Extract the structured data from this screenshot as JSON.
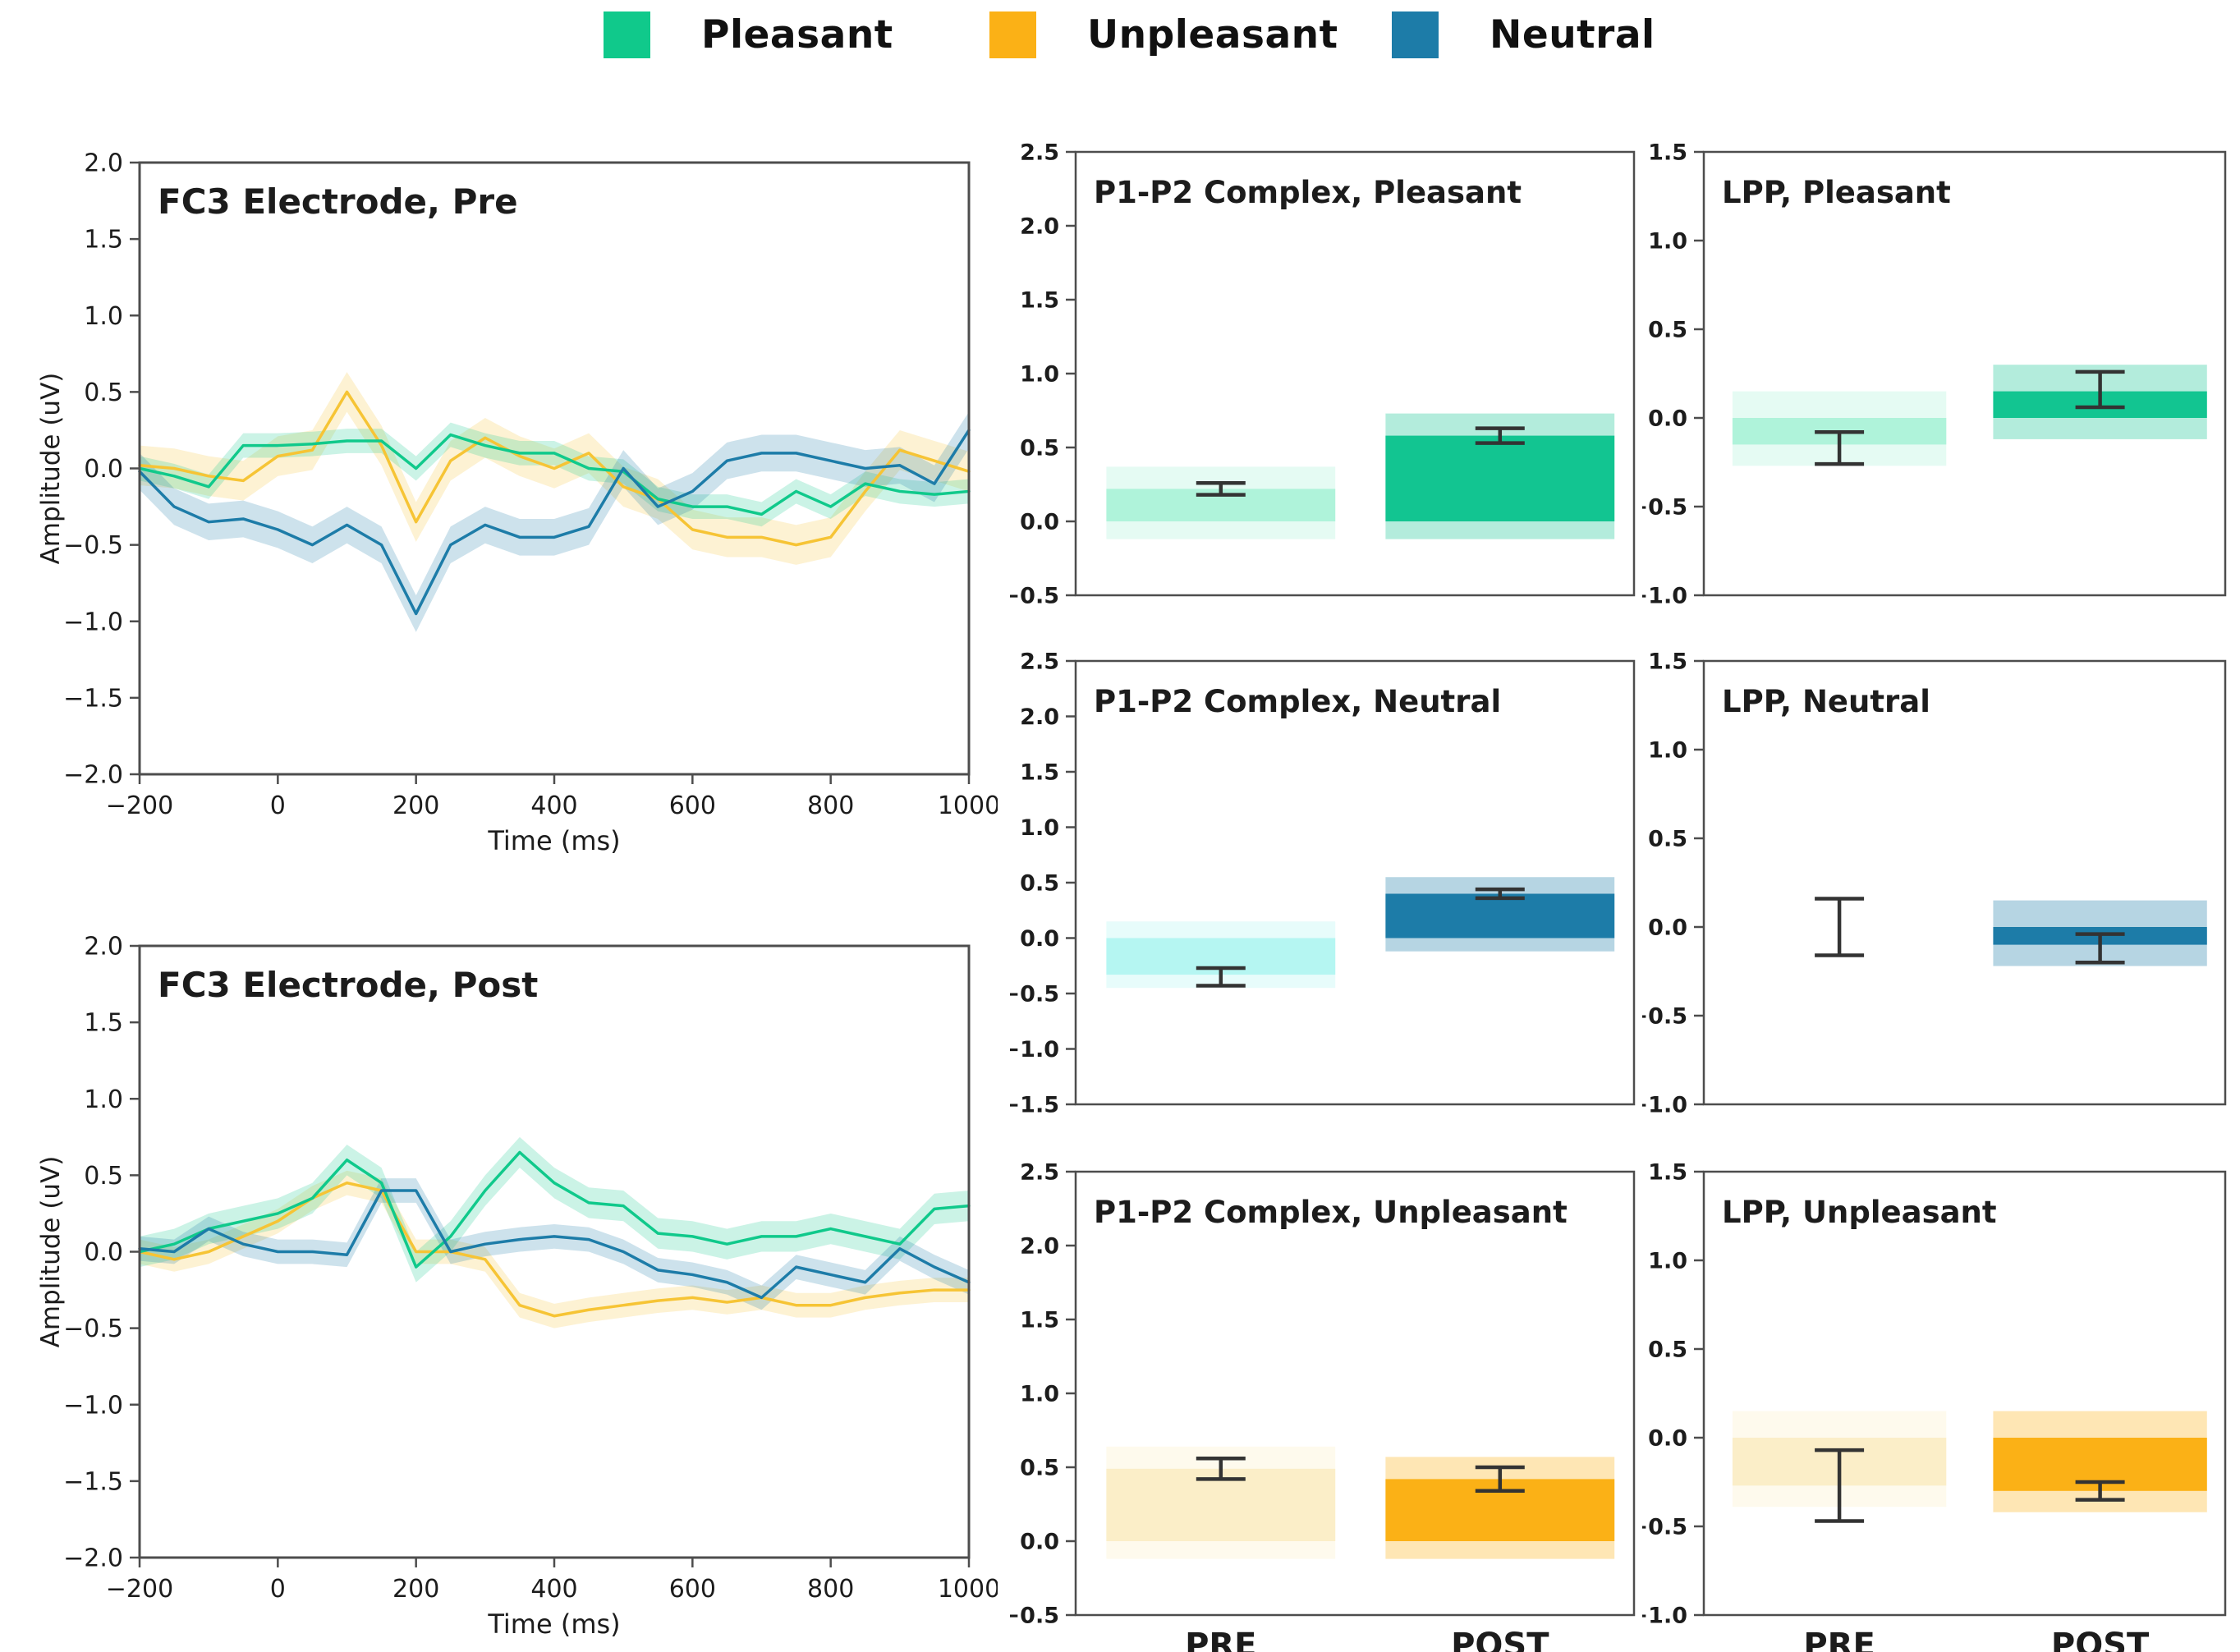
{
  "legend": {
    "items": [
      {
        "label": "Pleasant",
        "color": "#10c98b"
      },
      {
        "label": "Unpleasant",
        "color": "#fbb116"
      },
      {
        "label": "Neutral",
        "color": "#1d7ca8"
      }
    ]
  },
  "colors": {
    "pleasant": "#10c98b",
    "pleasant_light": "#aff3da",
    "unpleasant": "#fbb116",
    "unpleasant_light": "#fbeec8",
    "unpleasant_line": "#f6c435",
    "neutral": "#1d7ca8",
    "neutral_light": "#b5f6f2",
    "axis": "#4d4d4d",
    "error_bar": "#333333"
  },
  "chart_data": [
    {
      "id": "erp_pre",
      "type": "line",
      "title": "FC3 Electrode, Pre",
      "xlabel": "Time (ms)",
      "ylabel": "Amplitude (uV)",
      "xlim": [
        -200,
        1000
      ],
      "ylim": [
        -2.0,
        2.0
      ],
      "xticks": [
        -200,
        0,
        200,
        400,
        600,
        800,
        1000
      ],
      "yticks": [
        2.0,
        1.5,
        1.0,
        0.5,
        0.0,
        -0.5,
        -1.0,
        -1.5,
        -2.0
      ],
      "grid": false,
      "legend_position": "figure-top",
      "x": [
        -200,
        -150,
        -100,
        -50,
        0,
        50,
        100,
        150,
        200,
        250,
        300,
        350,
        400,
        450,
        500,
        550,
        600,
        650,
        700,
        750,
        800,
        850,
        900,
        950,
        1000
      ],
      "series": [
        {
          "name": "Unpleasant",
          "color": "#f6c435",
          "band": 0.13,
          "values": [
            0.02,
            0,
            -0.05,
            -0.08,
            0.08,
            0.12,
            0.5,
            0.15,
            -0.35,
            0.05,
            0.2,
            0.08,
            0,
            0.1,
            -0.12,
            -0.2,
            -0.4,
            -0.45,
            -0.45,
            -0.5,
            -0.45,
            -0.15,
            0.12,
            0.05,
            -0.02
          ]
        },
        {
          "name": "Pleasant",
          "color": "#10c98b",
          "band": 0.08,
          "values": [
            0,
            -0.05,
            -0.12,
            0.15,
            0.15,
            0.16,
            0.18,
            0.18,
            0,
            0.22,
            0.15,
            0.1,
            0.1,
            0,
            -0.02,
            -0.2,
            -0.25,
            -0.25,
            -0.3,
            -0.15,
            -0.25,
            -0.1,
            -0.15,
            -0.17,
            -0.15
          ]
        },
        {
          "name": "Neutral",
          "color": "#1d7ca8",
          "band": 0.12,
          "values": [
            -0.02,
            -0.25,
            -0.35,
            -0.33,
            -0.4,
            -0.5,
            -0.37,
            -0.5,
            -0.95,
            -0.5,
            -0.37,
            -0.45,
            -0.45,
            -0.38,
            0,
            -0.25,
            -0.15,
            0.05,
            0.1,
            0.1,
            0.05,
            0,
            0.02,
            -0.1,
            0.25
          ]
        }
      ]
    },
    {
      "id": "erp_post",
      "type": "line",
      "title": "FC3 Electrode, Post",
      "xlabel": "Time (ms)",
      "ylabel": "Amplitude (uV)",
      "xlim": [
        -200,
        1000
      ],
      "ylim": [
        -2.0,
        2.0
      ],
      "xticks": [
        -200,
        0,
        200,
        400,
        600,
        800,
        1000
      ],
      "yticks": [
        2.0,
        1.5,
        1.0,
        0.5,
        0.0,
        -0.5,
        -1.0,
        -1.5,
        -2.0
      ],
      "grid": false,
      "legend_position": "figure-top",
      "x": [
        -200,
        -150,
        -100,
        -50,
        0,
        50,
        100,
        150,
        200,
        250,
        300,
        350,
        400,
        450,
        500,
        550,
        600,
        650,
        700,
        750,
        800,
        850,
        900,
        950,
        1000
      ],
      "series": [
        {
          "name": "Unpleasant",
          "color": "#f6c435",
          "band": 0.08,
          "values": [
            0,
            -0.05,
            0,
            0.1,
            0.2,
            0.35,
            0.45,
            0.4,
            0,
            0,
            -0.05,
            -0.35,
            -0.42,
            -0.38,
            -0.35,
            -0.32,
            -0.3,
            -0.33,
            -0.3,
            -0.35,
            -0.35,
            -0.3,
            -0.27,
            -0.25,
            -0.25
          ]
        },
        {
          "name": "Pleasant",
          "color": "#10c98b",
          "band": 0.1,
          "values": [
            0,
            0.05,
            0.15,
            0.2,
            0.25,
            0.35,
            0.6,
            0.45,
            -0.1,
            0.1,
            0.4,
            0.65,
            0.45,
            0.32,
            0.3,
            0.12,
            0.1,
            0.05,
            0.1,
            0.1,
            0.15,
            0.1,
            0.05,
            0.28,
            0.3
          ]
        },
        {
          "name": "Neutral",
          "color": "#1d7ca8",
          "band": 0.08,
          "values": [
            0.02,
            0,
            0.15,
            0.05,
            0,
            0,
            -0.02,
            0.4,
            0.4,
            0,
            0.05,
            0.08,
            0.1,
            0.08,
            0,
            -0.12,
            -0.15,
            -0.2,
            -0.3,
            -0.1,
            -0.15,
            -0.2,
            0.02,
            -0.1,
            -0.2
          ]
        }
      ]
    },
    {
      "id": "p1p2_pleasant",
      "type": "bar",
      "title": "P1-P2 Complex, Pleasant",
      "categories": [
        "PRE",
        "POST"
      ],
      "ylim": [
        -0.5,
        2.5
      ],
      "yticks": [
        2.5,
        2.0,
        1.5,
        1.0,
        0.5,
        0.0,
        -0.5
      ],
      "grid": false,
      "bars": [
        {
          "label": "PRE",
          "value": 0.22,
          "err": 0.04,
          "color": "#aff3da"
        },
        {
          "label": "POST",
          "value": 0.58,
          "err": 0.05,
          "color": "#12c591"
        }
      ]
    },
    {
      "id": "lpp_pleasant",
      "type": "bar",
      "title": "LPP, Pleasant",
      "categories": [
        "PRE",
        "POST"
      ],
      "ylim": [
        -1.0,
        1.5
      ],
      "yticks": [
        1.5,
        1.0,
        0.5,
        0.0,
        -0.5,
        -1.0
      ],
      "grid": false,
      "bars": [
        {
          "label": "PRE",
          "value": -0.15,
          "err": 0.09,
          "err_center": -0.17,
          "color": "#aff3da"
        },
        {
          "label": "POST",
          "value": 0.15,
          "err": 0.1,
          "err_center": 0.16,
          "color": "#12c591"
        }
      ]
    },
    {
      "id": "p1p2_neutral",
      "type": "bar",
      "title": "P1-P2 Complex, Neutral",
      "categories": [
        "PRE",
        "POST"
      ],
      "ylim": [
        -1.5,
        2.5
      ],
      "yticks": [
        2.5,
        2.0,
        1.5,
        1.0,
        0.5,
        0.0,
        -0.5,
        -1.0,
        -1.5
      ],
      "grid": false,
      "bars": [
        {
          "label": "PRE",
          "value": -0.33,
          "err": 0.08,
          "err_center": -0.35,
          "color": "#b5f6f2"
        },
        {
          "label": "POST",
          "value": 0.4,
          "err": 0.04,
          "color": "#1d7ca8"
        }
      ]
    },
    {
      "id": "lpp_neutral",
      "type": "bar",
      "title": "LPP, Neutral",
      "categories": [
        "PRE",
        "POST"
      ],
      "ylim": [
        -1.0,
        1.5
      ],
      "yticks": [
        1.5,
        1.0,
        0.5,
        0.0,
        -0.5,
        -1.0
      ],
      "grid": false,
      "bars": [
        {
          "label": "PRE",
          "value": 0.0,
          "err": 0.16,
          "color": "#eefcfb"
        },
        {
          "label": "POST",
          "value": -0.1,
          "err": 0.08,
          "err_center": -0.12,
          "color": "#1d7ca8"
        }
      ]
    },
    {
      "id": "p1p2_unpleasant",
      "type": "bar",
      "title": "P1-P2 Complex, Unpleasant",
      "categories": [
        "PRE",
        "POST"
      ],
      "ylim": [
        -0.5,
        2.5
      ],
      "yticks": [
        2.5,
        2.0,
        1.5,
        1.0,
        0.5,
        0.0,
        -0.5
      ],
      "grid": false,
      "bars": [
        {
          "label": "PRE",
          "value": 0.49,
          "err": 0.07,
          "color": "#fbeec8"
        },
        {
          "label": "POST",
          "value": 0.42,
          "err": 0.08,
          "color": "#fbb116"
        }
      ]
    },
    {
      "id": "lpp_unpleasant",
      "type": "bar",
      "title": "LPP, Unpleasant",
      "categories": [
        "PRE",
        "POST"
      ],
      "ylim": [
        -1.0,
        1.5
      ],
      "yticks": [
        1.5,
        1.0,
        0.5,
        0.0,
        -0.5,
        -1.0
      ],
      "grid": false,
      "bars": [
        {
          "label": "PRE",
          "value": -0.27,
          "err": 0.2,
          "color": "#fbeec8"
        },
        {
          "label": "POST",
          "value": -0.3,
          "err": 0.05,
          "color": "#fbb116"
        }
      ]
    }
  ]
}
